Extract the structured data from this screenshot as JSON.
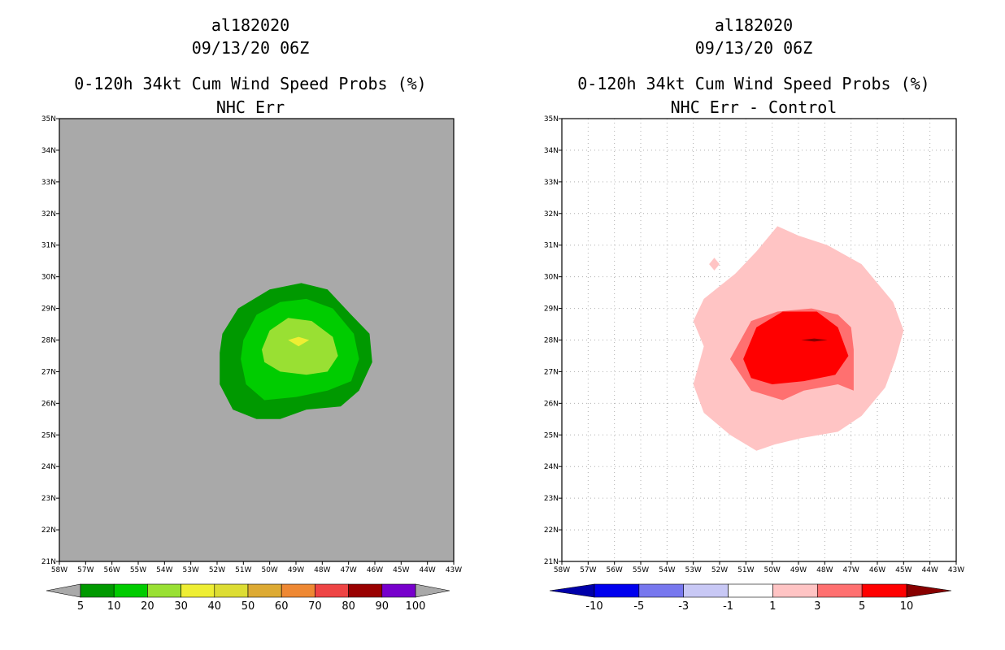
{
  "chart_data": [
    {
      "type": "heatmap",
      "storm": "al182020",
      "datetime": "09/13/20 06Z",
      "title": "0-120h 34kt Cum Wind Speed Probs (%)",
      "subtitle": "NHC Err",
      "lat_ticks": [
        "21N",
        "22N",
        "23N",
        "24N",
        "25N",
        "26N",
        "27N",
        "28N",
        "29N",
        "30N",
        "31N",
        "32N",
        "33N",
        "34N",
        "35N"
      ],
      "lon_ticks": [
        "58W",
        "57W",
        "56W",
        "55W",
        "54W",
        "53W",
        "52W",
        "51W",
        "50W",
        "49W",
        "48W",
        "47W",
        "46W",
        "45W",
        "44W",
        "43W"
      ],
      "xlim": [
        -58,
        -43
      ],
      "ylim": [
        21,
        35
      ],
      "grid": false,
      "background_color": "#a9a9a9",
      "levels": [
        "5",
        "10",
        "20",
        "30",
        "40",
        "50",
        "60",
        "70",
        "80",
        "90",
        "100"
      ],
      "colors": [
        "#009900",
        "#00cc00",
        "#99e033",
        "#eeee33",
        "#dddd33",
        "#ddaa33",
        "#ee8833",
        "#ee4444",
        "#990000",
        "#7700cc"
      ],
      "contours": [
        {
          "level": "5-10",
          "color": "#009900",
          "points": [
            [
              -51.9,
              27.6
            ],
            [
              -51.8,
              28.2
            ],
            [
              -51.2,
              29.0
            ],
            [
              -50.0,
              29.6
            ],
            [
              -48.8,
              29.8
            ],
            [
              -47.8,
              29.6
            ],
            [
              -46.9,
              28.8
            ],
            [
              -46.2,
              28.2
            ],
            [
              -46.1,
              27.3
            ],
            [
              -46.6,
              26.4
            ],
            [
              -47.3,
              25.9
            ],
            [
              -48.6,
              25.8
            ],
            [
              -49.6,
              25.5
            ],
            [
              -50.5,
              25.5
            ],
            [
              -51.4,
              25.8
            ],
            [
              -51.9,
              26.6
            ]
          ]
        },
        {
          "level": "10-20",
          "color": "#00cc00",
          "points": [
            [
              -51.1,
              27.4
            ],
            [
              -51.0,
              28.0
            ],
            [
              -50.5,
              28.8
            ],
            [
              -49.6,
              29.2
            ],
            [
              -48.6,
              29.3
            ],
            [
              -47.6,
              29.0
            ],
            [
              -46.8,
              28.2
            ],
            [
              -46.6,
              27.4
            ],
            [
              -46.9,
              26.7
            ],
            [
              -47.8,
              26.4
            ],
            [
              -49.0,
              26.2
            ],
            [
              -50.2,
              26.1
            ],
            [
              -50.9,
              26.6
            ]
          ]
        },
        {
          "level": "20-30",
          "color": "#99e033",
          "points": [
            [
              -50.3,
              27.7
            ],
            [
              -50.0,
              28.3
            ],
            [
              -49.3,
              28.7
            ],
            [
              -48.4,
              28.6
            ],
            [
              -47.6,
              28.1
            ],
            [
              -47.4,
              27.5
            ],
            [
              -47.8,
              27.0
            ],
            [
              -48.6,
              26.9
            ],
            [
              -49.6,
              27.0
            ],
            [
              -50.2,
              27.3
            ]
          ]
        },
        {
          "level": "30-40",
          "color": "#eeee33",
          "points": [
            [
              -49.3,
              28.0
            ],
            [
              -48.9,
              28.1
            ],
            [
              -48.5,
              28.0
            ],
            [
              -48.9,
              27.8
            ]
          ]
        }
      ]
    },
    {
      "type": "heatmap",
      "storm": "al182020",
      "datetime": "09/13/20 06Z",
      "title": "0-120h 34kt Cum Wind Speed Probs (%)",
      "subtitle": "NHC Err - Control",
      "lat_ticks": [
        "21N",
        "22N",
        "23N",
        "24N",
        "25N",
        "26N",
        "27N",
        "28N",
        "29N",
        "30N",
        "31N",
        "32N",
        "33N",
        "34N",
        "35N"
      ],
      "lon_ticks": [
        "58W",
        "57W",
        "56W",
        "55W",
        "54W",
        "53W",
        "52W",
        "51W",
        "50W",
        "49W",
        "48W",
        "47W",
        "46W",
        "45W",
        "44W",
        "43W"
      ],
      "xlim": [
        -58,
        -43
      ],
      "ylim": [
        21,
        35
      ],
      "grid": true,
      "background_color": "#ffffff",
      "levels": [
        "-10",
        "-5",
        "-3",
        "-1",
        "1",
        "3",
        "5",
        "10"
      ],
      "colors": [
        "#0000aa",
        "#0000ee",
        "#7777ee",
        "#c8c8f5",
        "#ffffff",
        "#ffc4c4",
        "#ff7070",
        "#ff0000",
        "#880000"
      ],
      "contours": [
        {
          "level": "1-3",
          "color": "#ffc4c4",
          "points": [
            [
              -53.0,
              26.6
            ],
            [
              -52.6,
              27.8
            ],
            [
              -53.0,
              28.6
            ],
            [
              -52.6,
              29.3
            ],
            [
              -51.4,
              30.1
            ],
            [
              -50.6,
              30.8
            ],
            [
              -49.8,
              31.6
            ],
            [
              -49.0,
              31.3
            ],
            [
              -47.9,
              31.0
            ],
            [
              -46.6,
              30.4
            ],
            [
              -45.4,
              29.2
            ],
            [
              -45.0,
              28.3
            ],
            [
              -45.3,
              27.4
            ],
            [
              -45.7,
              26.5
            ],
            [
              -46.6,
              25.6
            ],
            [
              -47.5,
              25.1
            ],
            [
              -48.9,
              24.9
            ],
            [
              -49.9,
              24.7
            ],
            [
              -50.6,
              24.5
            ],
            [
              -51.6,
              25.0
            ],
            [
              -52.6,
              25.7
            ]
          ]
        },
        {
          "level": "1-3",
          "color": "#ffc4c4",
          "points": [
            [
              -52.2,
              30.6
            ],
            [
              -52.0,
              30.4
            ],
            [
              -52.2,
              30.2
            ],
            [
              -52.4,
              30.4
            ]
          ]
        },
        {
          "level": "3-5",
          "color": "#ff7070",
          "points": [
            [
              -51.6,
              27.4
            ],
            [
              -51.2,
              28.0
            ],
            [
              -50.8,
              28.6
            ],
            [
              -49.8,
              28.9
            ],
            [
              -48.5,
              29.0
            ],
            [
              -47.5,
              28.8
            ],
            [
              -47.0,
              28.4
            ],
            [
              -46.9,
              27.7
            ],
            [
              -46.9,
              26.4
            ],
            [
              -47.5,
              26.6
            ],
            [
              -48.8,
              26.4
            ],
            [
              -49.6,
              26.1
            ],
            [
              -50.8,
              26.4
            ]
          ]
        },
        {
          "level": "5-10",
          "color": "#ff0000",
          "points": [
            [
              -51.1,
              27.4
            ],
            [
              -50.6,
              28.4
            ],
            [
              -49.6,
              28.9
            ],
            [
              -48.3,
              28.9
            ],
            [
              -47.5,
              28.4
            ],
            [
              -47.1,
              27.5
            ],
            [
              -47.6,
              26.9
            ],
            [
              -48.8,
              26.7
            ],
            [
              -50.0,
              26.6
            ],
            [
              -50.8,
              26.8
            ]
          ]
        },
        {
          "level": ">10",
          "color": "#880000",
          "points": [
            [
              -48.9,
              28.0
            ],
            [
              -48.4,
              28.05
            ],
            [
              -47.9,
              28.0
            ],
            [
              -48.4,
              27.95
            ]
          ]
        }
      ]
    }
  ]
}
